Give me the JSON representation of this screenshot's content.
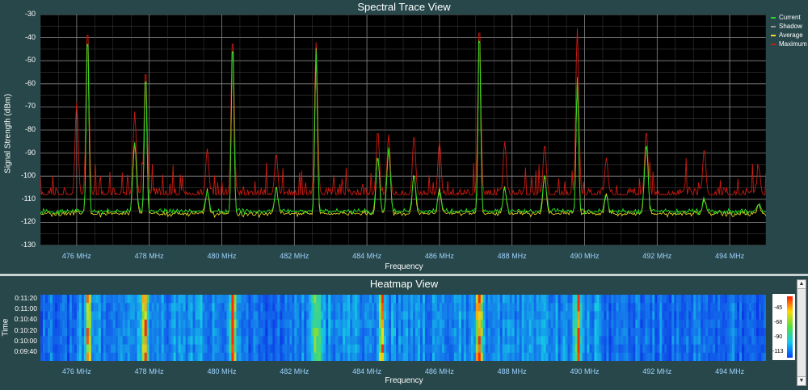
{
  "spectral": {
    "title": "Spectral Trace View",
    "ylabel": "Signal Strength (dBm)",
    "xlabel": "Frequency",
    "yticks": [
      "-30",
      "-40",
      "-50",
      "-60",
      "-70",
      "-80",
      "-90",
      "-100",
      "-110",
      "-120",
      "-130"
    ],
    "xticks": [
      "476 MHz",
      "478 MHz",
      "480 MHz",
      "482 MHz",
      "484 MHz",
      "486 MHz",
      "488 MHz",
      "490 MHz",
      "492 MHz",
      "494 MHz"
    ],
    "legend": [
      "Current",
      "Shadow",
      "Average",
      "Maximum"
    ]
  },
  "heatmap": {
    "title": "Heatmap View",
    "ylabel": "Time",
    "xlabel": "Frequency",
    "yticks": [
      "0:11:20",
      "0:11:00",
      "0:10:40",
      "0:10:20",
      "0:10:00",
      "0:09:40"
    ],
    "xticks": [
      "476 MHz",
      "478 MHz",
      "480 MHz",
      "482 MHz",
      "484 MHz",
      "486 MHz",
      "488 MHz",
      "490 MHz",
      "492 MHz",
      "494 MHz"
    ],
    "colorbar_ticks": [
      "-45",
      "-68",
      "-90",
      "-113"
    ]
  },
  "colors": {
    "background": "#27474a",
    "plot_bg": "#000000",
    "grid": "#7a7a7a",
    "current": "#22dd22",
    "shadow": "#9a9a9a",
    "average": "#f0e020",
    "maximum": "#cc1a10"
  },
  "chart_data": [
    {
      "type": "line",
      "title": "Spectral Trace View",
      "xlabel": "Frequency",
      "ylabel": "Signal Strength (dBm)",
      "xlim_mhz": [
        475,
        495
      ],
      "ylim": [
        -130,
        -30
      ],
      "grid": true,
      "legend_placement": "right",
      "series_names": [
        "Current",
        "Shadow",
        "Average",
        "Maximum"
      ],
      "baseline_dbm": {
        "current": -116,
        "average": -117,
        "maximum": -108
      },
      "peaks": [
        {
          "freq_mhz": 476.0,
          "current": -115,
          "maximum": -68
        },
        {
          "freq_mhz": 476.3,
          "current": -37,
          "maximum": -35
        },
        {
          "freq_mhz": 477.6,
          "current": -85,
          "maximum": -72
        },
        {
          "freq_mhz": 477.9,
          "current": -55,
          "maximum": -53
        },
        {
          "freq_mhz": 479.6,
          "current": -106,
          "maximum": -88
        },
        {
          "freq_mhz": 480.3,
          "current": -40,
          "maximum": -39
        },
        {
          "freq_mhz": 481.5,
          "current": -105,
          "maximum": -90
        },
        {
          "freq_mhz": 482.6,
          "current": -45,
          "maximum": -42
        },
        {
          "freq_mhz": 484.3,
          "current": -92,
          "maximum": -80
        },
        {
          "freq_mhz": 484.6,
          "current": -88,
          "maximum": -82
        },
        {
          "freq_mhz": 485.3,
          "current": -100,
          "maximum": -82
        },
        {
          "freq_mhz": 486.0,
          "current": -106,
          "maximum": -85
        },
        {
          "freq_mhz": 487.1,
          "current": -36,
          "maximum": -34
        },
        {
          "freq_mhz": 487.8,
          "current": -105,
          "maximum": -85
        },
        {
          "freq_mhz": 488.9,
          "current": -100,
          "maximum": -86
        },
        {
          "freq_mhz": 489.8,
          "current": -58,
          "maximum": -36
        },
        {
          "freq_mhz": 490.6,
          "current": -108,
          "maximum": -92
        },
        {
          "freq_mhz": 491.7,
          "current": -86,
          "maximum": -80
        },
        {
          "freq_mhz": 493.3,
          "current": -110,
          "maximum": -88
        },
        {
          "freq_mhz": 494.8,
          "current": -112,
          "maximum": -96
        }
      ]
    },
    {
      "type": "heatmap",
      "title": "Heatmap View",
      "xlabel": "Frequency",
      "ylabel": "Time",
      "xlim_mhz": [
        475,
        495
      ],
      "time_ticks": [
        "0:11:20",
        "0:11:00",
        "0:10:40",
        "0:10:20",
        "0:10:00",
        "0:09:40"
      ],
      "color_scale_dbm": [
        -113,
        -90,
        -68,
        -45
      ],
      "hot_bands_mhz": [
        476.3,
        477.9,
        480.3,
        482.6,
        484.4,
        487.1,
        489.8
      ]
    }
  ]
}
